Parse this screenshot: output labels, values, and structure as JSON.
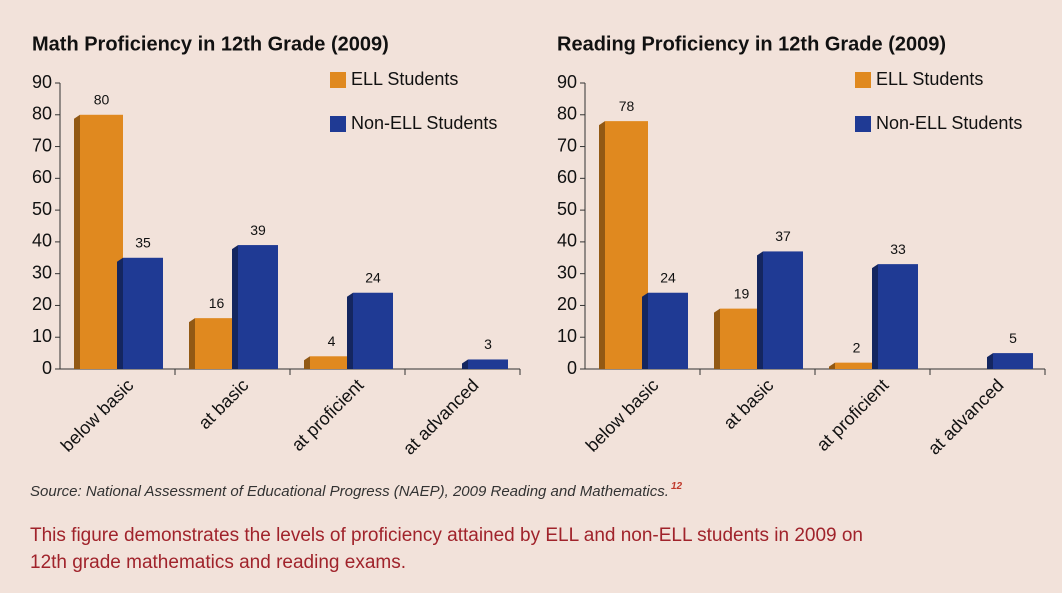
{
  "chart_data": [
    {
      "type": "bar",
      "title": "Math Proficiency in 12th Grade (2009)",
      "categories": [
        "below basic",
        "at basic",
        "at proficient",
        "at advanced"
      ],
      "series": [
        {
          "name": "ELL Students",
          "color": "#e0891f",
          "values": [
            80,
            16,
            4,
            null
          ]
        },
        {
          "name": "Non-ELL Students",
          "color": "#1f3a94",
          "values": [
            35,
            39,
            24,
            3
          ]
        }
      ],
      "ylim": [
        0,
        90
      ],
      "yticks": [
        0,
        10,
        20,
        30,
        40,
        50,
        60,
        70,
        80,
        90
      ],
      "legend": "top-right"
    },
    {
      "type": "bar",
      "title": "Reading Proficiency in 12th Grade (2009)",
      "categories": [
        "below basic",
        "at basic",
        "at proficient",
        "at advanced"
      ],
      "series": [
        {
          "name": "ELL Students",
          "color": "#e0891f",
          "values": [
            78,
            19,
            2,
            null
          ]
        },
        {
          "name": "Non-ELL Students",
          "color": "#1f3a94",
          "values": [
            24,
            37,
            33,
            5
          ]
        }
      ],
      "ylim": [
        0,
        90
      ],
      "yticks": [
        0,
        10,
        20,
        30,
        40,
        50,
        60,
        70,
        80,
        90
      ],
      "legend": "top-right"
    }
  ],
  "source": {
    "text": "Source: National Assessment of Educational Progress (NAEP), 2009 Reading and Mathematics.",
    "note": "12"
  },
  "caption": [
    "This figure demonstrates the levels of proficiency attained by ELL and non-ELL students in 2009 on",
    "12th grade mathematics and reading exams."
  ]
}
